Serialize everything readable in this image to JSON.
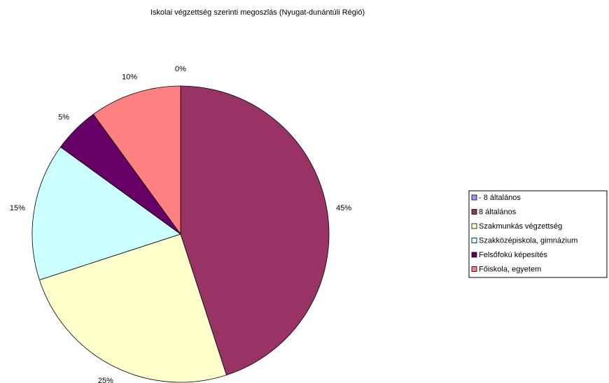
{
  "chart_data": {
    "type": "pie",
    "title": "Iskolai végzettség szerinti megoszlás (Nyugat-dunántúli Régió)",
    "categories": [
      "- 8 általános",
      "8 általános",
      "Szakmunkás végzettség",
      "Szakközépiskola, gimnázium",
      "Felsőfokú képesítés",
      "Főiskola, egyetem"
    ],
    "values": [
      0,
      45,
      25,
      15,
      5,
      10
    ],
    "value_labels": [
      "0%",
      "45%",
      "25%",
      "15%",
      "5%",
      "10%"
    ],
    "colors": [
      "#9999ff",
      "#993366",
      "#ffffcc",
      "#ccffff",
      "#660066",
      "#ff8080"
    ],
    "legend": "right"
  }
}
